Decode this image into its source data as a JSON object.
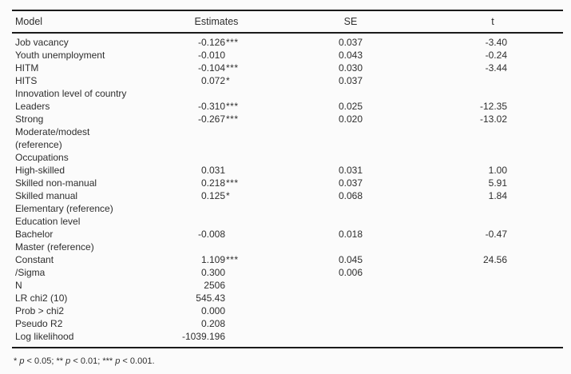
{
  "colors": {
    "background": "#fbfbfb",
    "text": "#2e2e2e",
    "rule": "#1b1b1b"
  },
  "table": {
    "columns": {
      "model": "Model",
      "estimates": "Estimates",
      "se": "SE",
      "t": "t"
    },
    "rows": [
      {
        "label": "Job vacancy",
        "est": "-0.126",
        "stars": "***",
        "se": "0.037",
        "t": "-3.40"
      },
      {
        "label": "Youth unemployment",
        "est": "-0.010",
        "stars": "",
        "se": "0.043",
        "t": "-0.24"
      },
      {
        "label": "HITM",
        "est": "-0.104",
        "stars": "***",
        "se": "0.030",
        "t": "-3.44"
      },
      {
        "label": "HITS",
        "est": "0.072",
        "stars": "*",
        "se": "0.037",
        "t": ""
      },
      {
        "label": "Innovation level of country",
        "est": "",
        "stars": "",
        "se": "",
        "t": ""
      },
      {
        "label": "Leaders",
        "est": "-0.310",
        "stars": "***",
        "se": "0.025",
        "t": "-12.35"
      },
      {
        "label": "Strong",
        "est": "-0.267",
        "stars": "***",
        "se": "0.020",
        "t": "-13.02"
      },
      {
        "label": "Moderate/modest",
        "est": "",
        "stars": "",
        "se": "",
        "t": ""
      },
      {
        "label": "(reference)",
        "est": "",
        "stars": "",
        "se": "",
        "t": ""
      },
      {
        "label": "Occupations",
        "est": "",
        "stars": "",
        "se": "",
        "t": ""
      },
      {
        "label": "High-skilled",
        "est": "0.031",
        "stars": "",
        "se": "0.031",
        "t": "1.00"
      },
      {
        "label": "Skilled non-manual",
        "est": "0.218",
        "stars": "***",
        "se": "0.037",
        "t": "5.91"
      },
      {
        "label": "Skilled manual",
        "est": "0.125",
        "stars": "*",
        "se": "0.068",
        "t": "1.84"
      },
      {
        "label": "Elementary (reference)",
        "est": "",
        "stars": "",
        "se": "",
        "t": ""
      },
      {
        "label": "Education level",
        "est": "",
        "stars": "",
        "se": "",
        "t": ""
      },
      {
        "label": "Bachelor",
        "est": "-0.008",
        "stars": "",
        "se": "0.018",
        "t": "-0.47"
      },
      {
        "label": "Master (reference)",
        "est": "",
        "stars": "",
        "se": "",
        "t": ""
      },
      {
        "label": "Constant",
        "est": "1.109",
        "stars": "***",
        "se": "0.045",
        "t": "24.56"
      },
      {
        "label": "/Sigma",
        "est": "0.300",
        "stars": "",
        "se": "0.006",
        "t": ""
      },
      {
        "label": "N",
        "est": "2506",
        "stars": "",
        "se": "",
        "t": ""
      },
      {
        "label": "LR chi2 (10)",
        "est": "545.43",
        "stars": "",
        "se": "",
        "t": ""
      },
      {
        "label": "Prob > chi2",
        "est": "0.000",
        "stars": "",
        "se": "",
        "t": ""
      },
      {
        "label": "Pseudo R2",
        "est": "0.208",
        "stars": "",
        "se": "",
        "t": ""
      },
      {
        "label": "Log likelihood",
        "est": "-1039.196",
        "stars": "",
        "se": "",
        "t": ""
      }
    ],
    "footnote": "* p < 0.05; ** p < 0.01; *** p < 0.001."
  }
}
